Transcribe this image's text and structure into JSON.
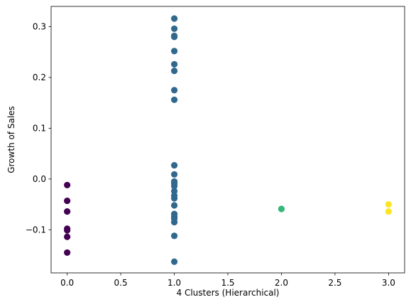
{
  "chart_data": {
    "type": "scatter",
    "title": "",
    "xlabel": "4 Clusters (Hierarchical)",
    "ylabel": "Growth of Sales",
    "xlim": [
      -0.15,
      3.15
    ],
    "ylim": [
      -0.185,
      0.34
    ],
    "xticks": [
      0.0,
      0.5,
      1.0,
      1.5,
      2.0,
      2.5,
      3.0
    ],
    "xtick_labels": [
      "0.0",
      "0.5",
      "1.0",
      "1.5",
      "2.0",
      "2.5",
      "3.0"
    ],
    "yticks": [
      -0.1,
      0.0,
      0.1,
      0.2,
      0.3
    ],
    "ytick_labels": [
      "−0.1",
      "0.0",
      "0.1",
      "0.2",
      "0.3"
    ],
    "grid": false,
    "series": [
      {
        "color": "#440154",
        "points": [
          {
            "x": 0,
            "y": -0.012
          },
          {
            "x": 0,
            "y": -0.043
          },
          {
            "x": 0,
            "y": -0.064
          },
          {
            "x": 0,
            "y": -0.098
          },
          {
            "x": 0,
            "y": -0.101
          },
          {
            "x": 0,
            "y": -0.114
          },
          {
            "x": 0,
            "y": -0.145
          }
        ]
      },
      {
        "color": "#31688e",
        "points": [
          {
            "x": 1,
            "y": 0.316
          },
          {
            "x": 1,
            "y": 0.296
          },
          {
            "x": 1,
            "y": 0.282
          },
          {
            "x": 1,
            "y": 0.28
          },
          {
            "x": 1,
            "y": 0.252
          },
          {
            "x": 1,
            "y": 0.226
          },
          {
            "x": 1,
            "y": 0.213
          },
          {
            "x": 1,
            "y": 0.175
          },
          {
            "x": 1,
            "y": 0.156
          },
          {
            "x": 1,
            "y": 0.027
          },
          {
            "x": 1,
            "y": 0.009
          },
          {
            "x": 1,
            "y": -0.005
          },
          {
            "x": 1,
            "y": -0.009
          },
          {
            "x": 1,
            "y": -0.014
          },
          {
            "x": 1,
            "y": -0.024
          },
          {
            "x": 1,
            "y": -0.033
          },
          {
            "x": 1,
            "y": -0.038
          },
          {
            "x": 1,
            "y": -0.052
          },
          {
            "x": 1,
            "y": -0.069
          },
          {
            "x": 1,
            "y": -0.074
          },
          {
            "x": 1,
            "y": -0.078
          },
          {
            "x": 1,
            "y": -0.085
          },
          {
            "x": 1,
            "y": -0.112
          },
          {
            "x": 1,
            "y": -0.163
          }
        ]
      },
      {
        "color": "#35b779",
        "points": [
          {
            "x": 2,
            "y": -0.059
          }
        ]
      },
      {
        "color": "#fde725",
        "points": [
          {
            "x": 3,
            "y": -0.05
          },
          {
            "x": 3,
            "y": -0.064
          }
        ]
      }
    ]
  }
}
